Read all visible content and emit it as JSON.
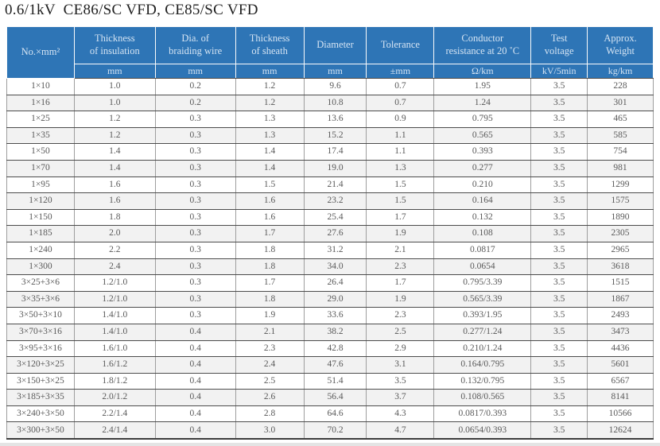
{
  "title": "0.6/1kV  CE86/SC VFD, CE85/SC VFD",
  "colors": {
    "header_bg": "#2e75b6",
    "header_text": "#d5e4f3",
    "row_stripe": "#f2f2f2",
    "body_text": "#595959",
    "grid_dark": "#4c4c4c",
    "grid_light": "#9e9e9e"
  },
  "table": {
    "columns": [
      {
        "label": "No.×mm²",
        "unit": ""
      },
      {
        "label": "Thickness\nof insulation",
        "unit": "mm"
      },
      {
        "label": "Dia. of\nbraiding wire",
        "unit": "mm"
      },
      {
        "label": "Thickness\nof sheath",
        "unit": "mm"
      },
      {
        "label": "Diameter",
        "unit": "mm"
      },
      {
        "label": "Tolerance",
        "unit": "±mm"
      },
      {
        "label": "Conductor\nresistance at 20 ˚C",
        "unit": "Ω/km"
      },
      {
        "label": "Test\nvoltage",
        "unit": "kV/5min"
      },
      {
        "label": "Approx.\nWeight",
        "unit": "kg/km"
      }
    ],
    "rows": [
      [
        "1×10",
        "1.0",
        "0.2",
        "1.2",
        "9.6",
        "0.7",
        "1.95",
        "3.5",
        "228"
      ],
      [
        "1×16",
        "1.0",
        "0.2",
        "1.2",
        "10.8",
        "0.7",
        "1.24",
        "3.5",
        "301"
      ],
      [
        "1×25",
        "1.2",
        "0.3",
        "1.3",
        "13.6",
        "0.9",
        "0.795",
        "3.5",
        "465"
      ],
      [
        "1×35",
        "1.2",
        "0.3",
        "1.3",
        "15.2",
        "1.1",
        "0.565",
        "3.5",
        "585"
      ],
      [
        "1×50",
        "1.4",
        "0.3",
        "1.4",
        "17.4",
        "1.1",
        "0.393",
        "3.5",
        "754"
      ],
      [
        "1×70",
        "1.4",
        "0.3",
        "1.4",
        "19.0",
        "1.3",
        "0.277",
        "3.5",
        "981"
      ],
      [
        "1×95",
        "1.6",
        "0.3",
        "1.5",
        "21.4",
        "1.5",
        "0.210",
        "3.5",
        "1299"
      ],
      [
        "1×120",
        "1.6",
        "0.3",
        "1.6",
        "23.2",
        "1.5",
        "0.164",
        "3.5",
        "1575"
      ],
      [
        "1×150",
        "1.8",
        "0.3",
        "1.6",
        "25.4",
        "1.7",
        "0.132",
        "3.5",
        "1890"
      ],
      [
        "1×185",
        "2.0",
        "0.3",
        "1.7",
        "27.6",
        "1.9",
        "0.108",
        "3.5",
        "2305"
      ],
      [
        "1×240",
        "2.2",
        "0.3",
        "1.8",
        "31.2",
        "2.1",
        "0.0817",
        "3.5",
        "2965"
      ],
      [
        "1×300",
        "2.4",
        "0.3",
        "1.8",
        "34.0",
        "2.3",
        "0.0654",
        "3.5",
        "3618"
      ],
      [
        "3×25+3×6",
        "1.2/1.0",
        "0.3",
        "1.7",
        "26.4",
        "1.7",
        "0.795/3.39",
        "3.5",
        "1515"
      ],
      [
        "3×35+3×6",
        "1.2/1.0",
        "0.3",
        "1.8",
        "29.0",
        "1.9",
        "0.565/3.39",
        "3.5",
        "1867"
      ],
      [
        "3×50+3×10",
        "1.4/1.0",
        "0.3",
        "1.9",
        "33.6",
        "2.3",
        "0.393/1.95",
        "3.5",
        "2493"
      ],
      [
        "3×70+3×16",
        "1.4/1.0",
        "0.4",
        "2.1",
        "38.2",
        "2.5",
        "0.277/1.24",
        "3.5",
        "3473"
      ],
      [
        "3×95+3×16",
        "1.6/1.0",
        "0.4",
        "2.3",
        "42.8",
        "2.9",
        "0.210/1.24",
        "3.5",
        "4436"
      ],
      [
        "3×120+3×25",
        "1.6/1.2",
        "0.4",
        "2.4",
        "47.6",
        "3.1",
        "0.164/0.795",
        "3.5",
        "5601"
      ],
      [
        "3×150+3×25",
        "1.8/1.2",
        "0.4",
        "2.5",
        "51.4",
        "3.5",
        "0.132/0.795",
        "3.5",
        "6567"
      ],
      [
        "3×185+3×35",
        "2.0/1.2",
        "0.4",
        "2.6",
        "56.4",
        "3.7",
        "0.108/0.565",
        "3.5",
        "8141"
      ],
      [
        "3×240+3×50",
        "2.2/1.4",
        "0.4",
        "2.8",
        "64.6",
        "4.3",
        "0.0817/0.393",
        "3.5",
        "10566"
      ],
      [
        "3×300+3×50",
        "2.4/1.4",
        "0.4",
        "3.0",
        "70.2",
        "4.7",
        "0.0654/0.393",
        "3.5",
        "12624"
      ]
    ]
  }
}
